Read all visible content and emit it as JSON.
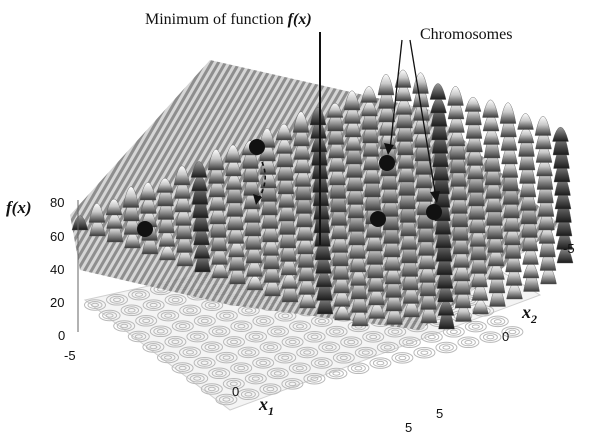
{
  "annotations": {
    "minimum_text": "Minimum of function ",
    "minimum_func": "f(x)",
    "chromosomes": "Chromosomes"
  },
  "axes": {
    "z_label": "f(x)",
    "x1_label": "x",
    "x1_sub": "1",
    "x2_label": "x",
    "x2_sub": "2",
    "z_ticks": [
      "80",
      "60",
      "40",
      "20",
      "0"
    ],
    "x1_ticks": [
      "-5",
      "0",
      "5"
    ],
    "x2_ticks": [
      "-5",
      "0",
      "5"
    ]
  },
  "chart_data": {
    "type": "surface",
    "xlabel": "x1",
    "ylabel": "x2",
    "zlabel": "f(x)",
    "xlim": [
      -5,
      5
    ],
    "ylim": [
      -5,
      5
    ],
    "zlim": [
      0,
      80
    ],
    "markers": 5
  }
}
